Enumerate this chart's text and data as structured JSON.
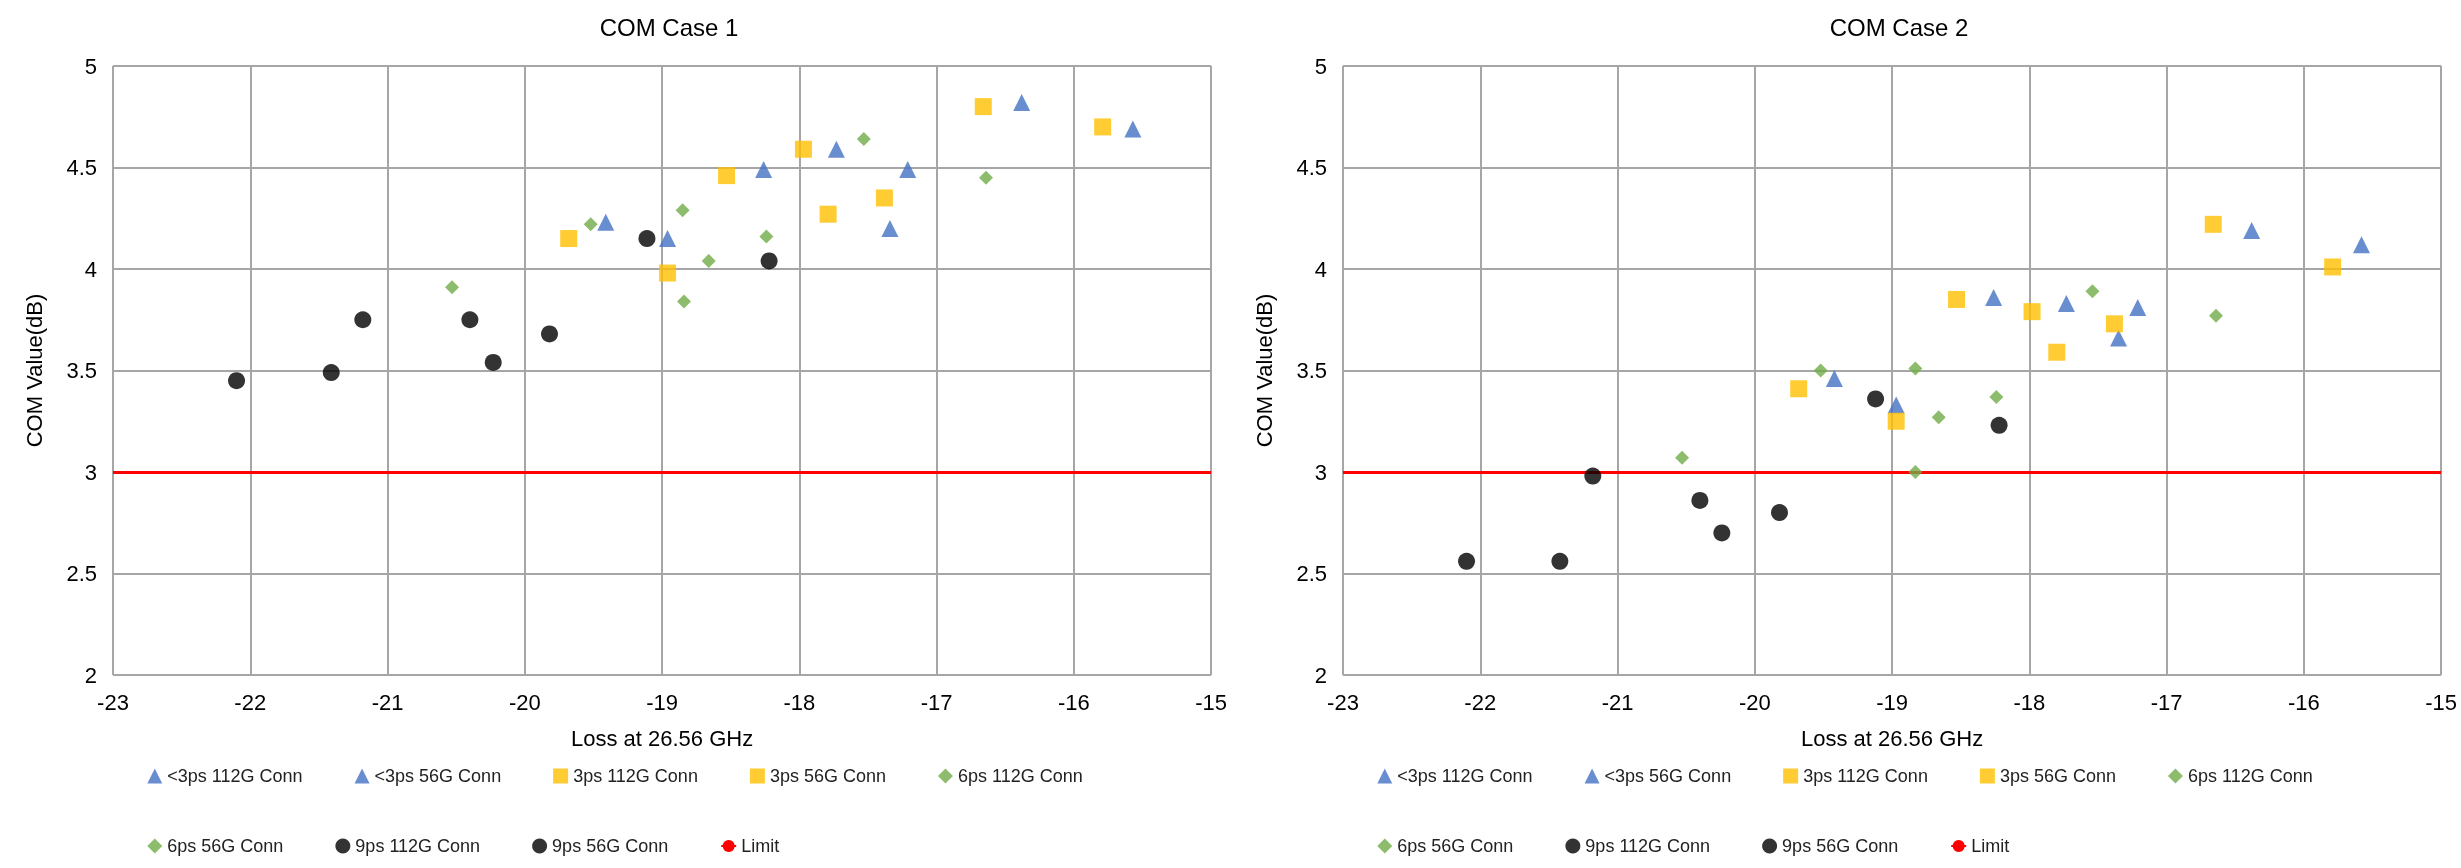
{
  "chart_data": [
    {
      "type": "scatter",
      "title": "COM Case 1",
      "xlabel": "Loss at 26.56 GHz",
      "ylabel": "COM Value(dB)",
      "xlim": [
        -23,
        -15
      ],
      "xticks": [
        -23,
        -22,
        -21,
        -20,
        -19,
        -18,
        -17,
        -16,
        -15
      ],
      "ylim": [
        2,
        5
      ],
      "yticks": [
        2,
        2.5,
        3,
        3.5,
        4,
        4.5,
        5
      ],
      "grid": true,
      "legend": "bottom",
      "ref_lines": [
        {
          "axis": "y",
          "value": 3,
          "label": "Limit",
          "color": "#ff0000"
        }
      ],
      "series": [
        {
          "name": "<3ps 112G Conn",
          "color": "#4472c4",
          "marker": "triangle",
          "x": [
            -16.38,
            -15.57,
            -17.73,
            -17.34
          ],
          "values": [
            4.82,
            4.69,
            4.59,
            4.2
          ]
        },
        {
          "name": "<3ps 56G Conn",
          "color": "#4472c4",
          "marker": "triangle",
          "x": [
            -19.41,
            -18.96,
            -18.26,
            -17.21
          ],
          "values": [
            4.23,
            4.15,
            4.49,
            4.49
          ]
        },
        {
          "name": "3ps 112G Conn",
          "color": "#ffc000",
          "marker": "square",
          "x": [
            -17.97,
            -17.79,
            -16.66,
            -15.79
          ],
          "values": [
            4.59,
            4.27,
            4.8,
            4.7
          ]
        },
        {
          "name": "3ps 56G Conn",
          "color": "#ffc000",
          "marker": "square",
          "x": [
            -19.68,
            -18.96,
            -18.53,
            -17.38
          ],
          "values": [
            4.15,
            3.98,
            4.46,
            4.35
          ]
        },
        {
          "name": "6ps 112G Conn",
          "color": "#70ad47",
          "marker": "diamond",
          "x": [
            -18.85,
            -18.66,
            -17.53,
            -16.64
          ],
          "values": [
            4.29,
            4.04,
            4.64,
            4.45
          ]
        },
        {
          "name": "6ps 56G Conn",
          "color": "#70ad47",
          "marker": "diamond",
          "x": [
            -20.53,
            -19.52,
            -18.84,
            -18.24
          ],
          "values": [
            3.91,
            4.22,
            3.84,
            4.16
          ]
        },
        {
          "name": "9ps 112G Conn",
          "color": "#000000",
          "marker": "circle",
          "x": [
            -20.4,
            -20.23,
            -19.11,
            -18.22
          ],
          "values": [
            3.75,
            3.54,
            4.15,
            4.04
          ]
        },
        {
          "name": "9ps 56G Conn",
          "color": "#000000",
          "marker": "circle",
          "x": [
            -22.1,
            -21.41,
            -21.18,
            -19.82
          ],
          "values": [
            3.45,
            3.49,
            3.75,
            3.68
          ]
        }
      ]
    },
    {
      "type": "scatter",
      "title": "COM Case 2",
      "xlabel": "Loss at 26.56 GHz",
      "ylabel": "COM Value(dB)",
      "xlim": [
        -23,
        -15
      ],
      "xticks": [
        -23,
        -22,
        -21,
        -20,
        -19,
        -18,
        -17,
        -16,
        -15
      ],
      "ylim": [
        2,
        5
      ],
      "yticks": [
        2,
        2.5,
        3,
        3.5,
        4,
        4.5,
        5
      ],
      "grid": true,
      "legend": "bottom",
      "ref_lines": [
        {
          "axis": "y",
          "value": 3,
          "label": "Limit",
          "color": "#ff0000"
        }
      ],
      "series": [
        {
          "name": "<3ps 112G Conn",
          "color": "#4472c4",
          "marker": "triangle",
          "x": [
            -16.38,
            -15.58,
            -17.73,
            -17.35
          ],
          "values": [
            4.19,
            4.12,
            3.83,
            3.66
          ]
        },
        {
          "name": "<3ps 56G Conn",
          "color": "#4472c4",
          "marker": "triangle",
          "x": [
            -19.42,
            -18.97,
            -18.26,
            -17.21
          ],
          "values": [
            3.46,
            3.33,
            3.86,
            3.81
          ]
        },
        {
          "name": "3ps 112G Conn",
          "color": "#ffc000",
          "marker": "square",
          "x": [
            -17.98,
            -17.8,
            -16.66,
            -15.79
          ],
          "values": [
            3.79,
            3.59,
            4.22,
            4.01
          ]
        },
        {
          "name": "3ps 56G Conn",
          "color": "#ffc000",
          "marker": "square",
          "x": [
            -19.68,
            -18.97,
            -18.53,
            -17.38
          ],
          "values": [
            3.41,
            3.25,
            3.85,
            3.73
          ]
        },
        {
          "name": "6ps 112G Conn",
          "color": "#70ad47",
          "marker": "diamond",
          "x": [
            -18.83,
            -18.66,
            -17.54,
            -16.64
          ],
          "values": [
            3.51,
            3.27,
            3.89,
            3.77
          ]
        },
        {
          "name": "6ps 56G Conn",
          "color": "#70ad47",
          "marker": "diamond",
          "x": [
            -20.53,
            -19.52,
            -18.83,
            -18.24
          ],
          "values": [
            3.07,
            3.5,
            3.0,
            3.37
          ]
        },
        {
          "name": "9ps 112G Conn",
          "color": "#000000",
          "marker": "circle",
          "x": [
            -20.4,
            -20.24,
            -19.12,
            -18.22
          ],
          "values": [
            2.86,
            2.7,
            3.36,
            3.23
          ]
        },
        {
          "name": "9ps 56G Conn",
          "color": "#000000",
          "marker": "circle",
          "x": [
            -22.1,
            -21.42,
            -21.18,
            -19.82
          ],
          "values": [
            2.56,
            2.56,
            2.98,
            2.8
          ]
        }
      ]
    }
  ]
}
